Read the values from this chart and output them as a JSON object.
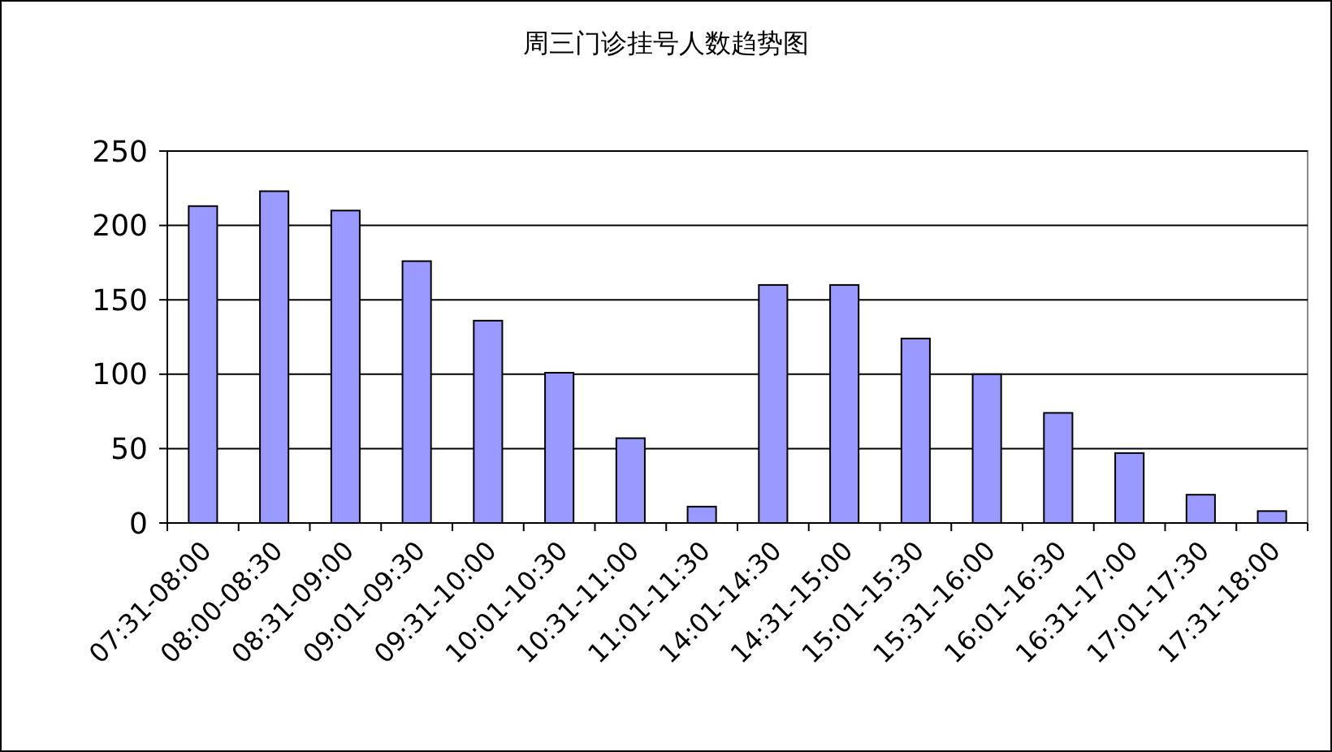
{
  "chart_data": {
    "type": "bar",
    "title": "周三门诊挂号人数趋势图",
    "categories": [
      "07:31-08:00",
      "08:00-08:30",
      "08:31-09:00",
      "09:01-09:30",
      "09:31-10:00",
      "10:01-10:30",
      "10:31-11:00",
      "11:01-11:30",
      "14:01-14:30",
      "14:31-15:00",
      "15:01-15:30",
      "15:31-16:00",
      "16:01-16:30",
      "16:31-17:00",
      "17:01-17:30",
      "17:31-18:00"
    ],
    "values": [
      213,
      223,
      210,
      176,
      136,
      101,
      57,
      11,
      160,
      160,
      124,
      100,
      74,
      47,
      19,
      8
    ],
    "color": "#9999ff",
    "ylim": [
      0,
      250
    ],
    "yticks": [
      0,
      50,
      100,
      150,
      200,
      250
    ],
    "grid": "y"
  }
}
